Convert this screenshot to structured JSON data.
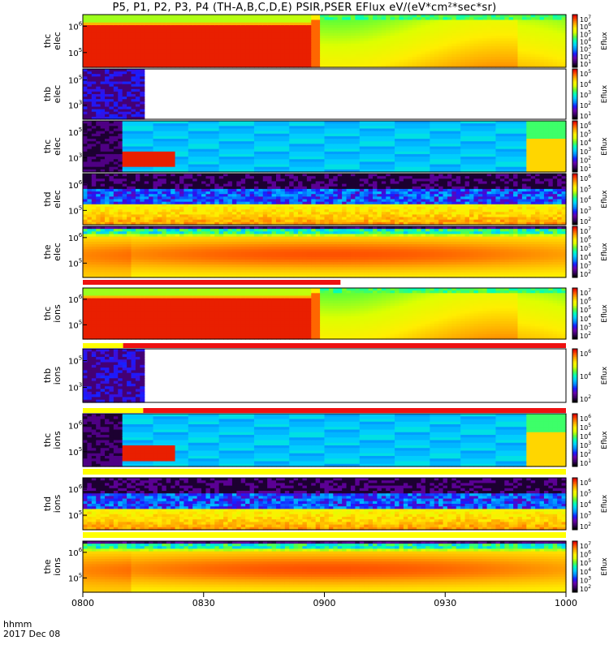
{
  "title": "P5, P1, P2, P3, P4 (TH-A,B,C,D,E) PSIR,PSER EFlux eV/(eV*cm²*sec*sr)",
  "corner": {
    "line1": "hhmm",
    "line2": "2017 Dec 08"
  },
  "colorbar_palette": [
    "#000000",
    "#3a0066",
    "#6a00aa",
    "#1a1aff",
    "#0088ff",
    "#00ccff",
    "#00ffbb",
    "#66ff33",
    "#ddff00",
    "#ffee00",
    "#ffaa00",
    "#ff5500",
    "#dd0000"
  ],
  "chart_data": {
    "type": "heatmap",
    "x_axis": {
      "ticks": [
        "0800",
        "0830",
        "0900",
        "0930",
        "1000"
      ],
      "range": [
        "08:00",
        "10:00"
      ],
      "label": "hhmm"
    },
    "date": "2017 Dec 08",
    "panels": [
      {
        "ylabel": "thc\nelec",
        "yticks": [
          "10^6",
          "10^5"
        ],
        "cbar_ticks": [
          "10^7",
          "10^6",
          "10^5",
          "10^4",
          "10^3",
          "10^2",
          "10^1"
        ],
        "cbar_label": "Eflux",
        "pattern": "saturated_then_smooth"
      },
      {
        "ylabel": "thb\nelec",
        "yticks": [
          "10^5",
          "10^3"
        ],
        "cbar_ticks": [
          "10^5",
          "10^4",
          "10^3",
          "10^2",
          "10^1"
        ],
        "cbar_label": "Eflux",
        "pattern": "noise_then_nodata",
        "data_end": "08:15"
      },
      {
        "ylabel": "thc\nelec",
        "yticks": [
          "10^5",
          "10^3"
        ],
        "cbar_ticks": [
          "10^6",
          "10^5",
          "10^4",
          "10^3",
          "10^2",
          "10^1"
        ],
        "cbar_label": "Eflux",
        "pattern": "blocky_cyan"
      },
      {
        "ylabel": "thd\nelec",
        "yticks": [
          "10^6",
          "10^5"
        ],
        "cbar_ticks": [
          "10^6",
          "10^5",
          "10^4",
          "10^3",
          "10^2"
        ],
        "cbar_label": "Eflux",
        "pattern": "noisy_blue_band"
      },
      {
        "ylabel": "the\nelec",
        "yticks": [
          "10^6",
          "10^5"
        ],
        "cbar_ticks": [
          "10^7",
          "10^6",
          "10^5",
          "10^4",
          "10^3",
          "10^2"
        ],
        "cbar_label": "Eflux",
        "pattern": "smooth_orange"
      },
      {
        "ylabel": "thc\nions",
        "yticks": [
          "10^6",
          "10^5"
        ],
        "cbar_ticks": [
          "10^7",
          "10^6",
          "10^5",
          "10^4",
          "10^3",
          "10^2"
        ],
        "cbar_label": "Eflux",
        "pattern": "saturated_then_smooth"
      },
      {
        "ylabel": "thb\nions",
        "yticks": [
          "10^5",
          "10^3"
        ],
        "cbar_ticks": [
          "10^6",
          "10^4",
          "10^2"
        ],
        "cbar_label": "Eflux",
        "pattern": "noise_then_nodata",
        "data_end": "08:15"
      },
      {
        "ylabel": "thc\nions",
        "yticks": [
          "10^6",
          "10^5"
        ],
        "cbar_ticks": [
          "10^6",
          "10^5",
          "10^4",
          "10^3",
          "10^2",
          "10^1"
        ],
        "cbar_label": "Eflux",
        "pattern": "blocky_cyan"
      },
      {
        "ylabel": "thd\nions",
        "yticks": [
          "10^6",
          "10^5"
        ],
        "cbar_ticks": [
          "10^6",
          "10^5",
          "10^4",
          "10^3",
          "10^2"
        ],
        "cbar_label": "Eflux",
        "pattern": "noisy_blue_band"
      },
      {
        "ylabel": "the\nions",
        "yticks": [
          "10^6",
          "10^5"
        ],
        "cbar_ticks": [
          "10^7",
          "10^6",
          "10^5",
          "10^4",
          "10^3",
          "10^2"
        ],
        "cbar_label": "Eflux",
        "pattern": "smooth_orange"
      }
    ],
    "mode_bars": [
      {
        "segments": [
          {
            "from": "08:00",
            "to": "09:04",
            "color": "red"
          }
        ]
      },
      {
        "segments": [
          {
            "from": "08:00",
            "to": "08:10",
            "color": "yellow"
          },
          {
            "from": "08:10",
            "to": "10:00",
            "color": "red"
          }
        ]
      },
      {
        "segments": [
          {
            "from": "08:00",
            "to": "08:15",
            "color": "yellow"
          },
          {
            "from": "08:15",
            "to": "10:00",
            "color": "red"
          }
        ]
      },
      {
        "segments": [
          {
            "from": "08:00",
            "to": "10:00",
            "color": "yellow"
          }
        ]
      },
      {
        "segments": [
          {
            "from": "08:00",
            "to": "10:00",
            "color": "yellow"
          }
        ]
      }
    ]
  }
}
